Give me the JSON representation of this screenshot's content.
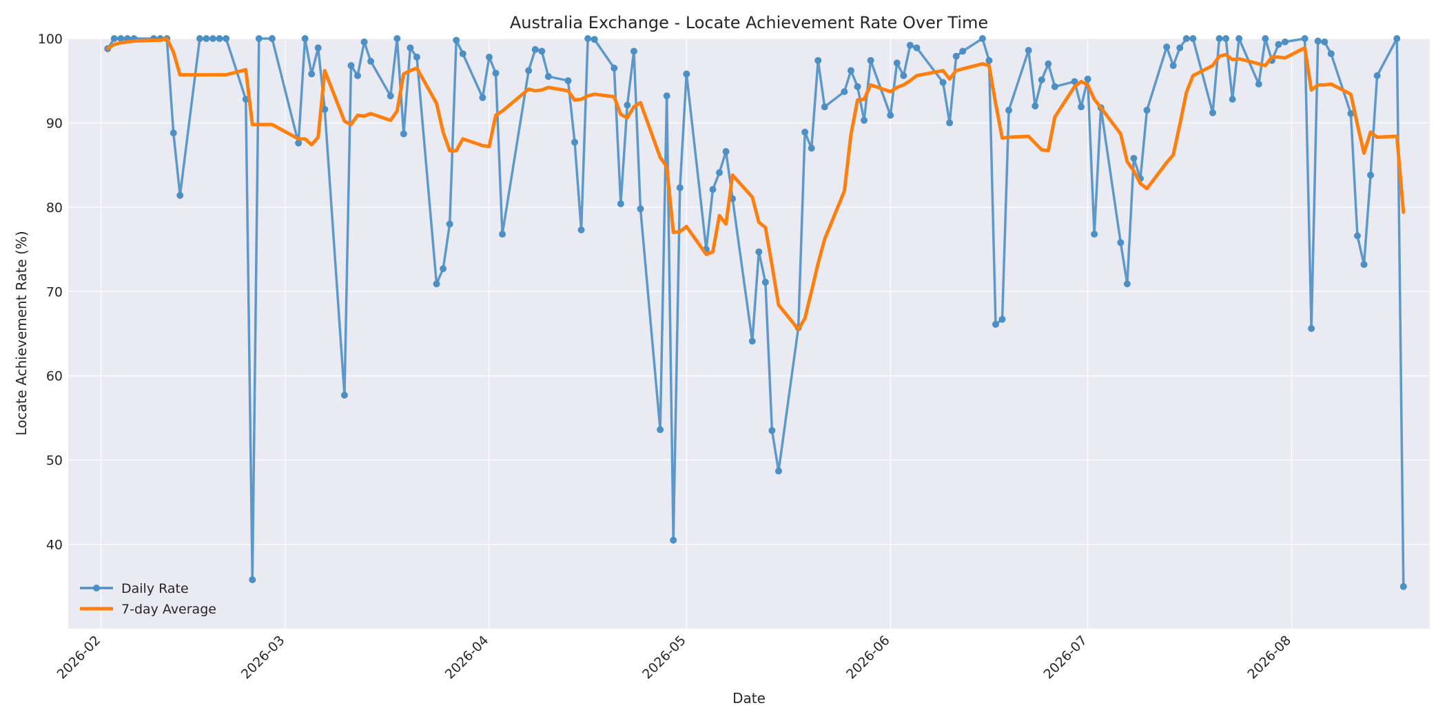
{
  "chart_data": {
    "type": "line",
    "title": "Australia Exchange - Locate Achievement Rate Over Time",
    "xlabel": "Date",
    "ylabel": "Locate Achievement Rate (%)",
    "ylim": [
      30,
      100
    ],
    "xlim": [
      "2026-01-27",
      "2026-08-22"
    ],
    "yticks": [
      40,
      50,
      60,
      70,
      80,
      90,
      100
    ],
    "xticks": [
      "2026-02",
      "2026-03",
      "2026-04",
      "2026-05",
      "2026-06",
      "2026-07",
      "2026-08"
    ],
    "grid": true,
    "legend_position": "bottom-left",
    "colors": {
      "background": "#eaeaf2",
      "daily": "#4c8fc4",
      "average": "#ff7f0e"
    },
    "series": [
      {
        "name": "Daily Rate",
        "marker": "circle",
        "points": [
          [
            "2026-02-02",
            98.8
          ],
          [
            "2026-02-03",
            100
          ],
          [
            "2026-02-04",
            100
          ],
          [
            "2026-02-05",
            100
          ],
          [
            "2026-02-06",
            100
          ],
          [
            "2026-02-09",
            100
          ],
          [
            "2026-02-10",
            100
          ],
          [
            "2026-02-11",
            100
          ],
          [
            "2026-02-12",
            88.8
          ],
          [
            "2026-02-13",
            81.4
          ],
          [
            "2026-02-16",
            100
          ],
          [
            "2026-02-17",
            100
          ],
          [
            "2026-02-18",
            100
          ],
          [
            "2026-02-19",
            100
          ],
          [
            "2026-02-20",
            100
          ],
          [
            "2026-02-23",
            92.8
          ],
          [
            "2026-02-24",
            35.8
          ],
          [
            "2026-02-25",
            100
          ],
          [
            "2026-02-27",
            100
          ],
          [
            "2026-03-03",
            87.6
          ],
          [
            "2026-03-04",
            100
          ],
          [
            "2026-03-05",
            95.8
          ],
          [
            "2026-03-06",
            98.9
          ],
          [
            "2026-03-07",
            91.6
          ],
          [
            "2026-03-10",
            57.7
          ],
          [
            "2026-03-11",
            96.8
          ],
          [
            "2026-03-12",
            95.6
          ],
          [
            "2026-03-13",
            99.6
          ],
          [
            "2026-03-14",
            97.3
          ],
          [
            "2026-03-17",
            93.2
          ],
          [
            "2026-03-18",
            100
          ],
          [
            "2026-03-19",
            88.7
          ],
          [
            "2026-03-20",
            98.9
          ],
          [
            "2026-03-21",
            97.8
          ],
          [
            "2026-03-24",
            70.9
          ],
          [
            "2026-03-25",
            72.7
          ],
          [
            "2026-03-26",
            78.0
          ],
          [
            "2026-03-27",
            99.8
          ],
          [
            "2026-03-28",
            98.2
          ],
          [
            "2026-03-31",
            93.0
          ],
          [
            "2026-04-01",
            97.8
          ],
          [
            "2026-04-02",
            95.9
          ],
          [
            "2026-04-03",
            76.8
          ],
          [
            "2026-04-07",
            96.2
          ],
          [
            "2026-04-08",
            98.7
          ],
          [
            "2026-04-09",
            98.5
          ],
          [
            "2026-04-10",
            95.5
          ],
          [
            "2026-04-13",
            95.0
          ],
          [
            "2026-04-14",
            87.7
          ],
          [
            "2026-04-15",
            77.3
          ],
          [
            "2026-04-16",
            100
          ],
          [
            "2026-04-17",
            99.9
          ],
          [
            "2026-04-20",
            96.5
          ],
          [
            "2026-04-21",
            80.4
          ],
          [
            "2026-04-22",
            92.1
          ],
          [
            "2026-04-23",
            98.5
          ],
          [
            "2026-04-24",
            79.8
          ],
          [
            "2026-04-27",
            53.6
          ],
          [
            "2026-04-28",
            93.2
          ],
          [
            "2026-04-29",
            40.5
          ],
          [
            "2026-04-30",
            82.3
          ],
          [
            "2026-05-01",
            95.8
          ],
          [
            "2026-05-04",
            75.0
          ],
          [
            "2026-05-05",
            82.1
          ],
          [
            "2026-05-06",
            84.1
          ],
          [
            "2026-05-07",
            86.6
          ],
          [
            "2026-05-08",
            81.0
          ],
          [
            "2026-05-11",
            64.1
          ],
          [
            "2026-05-12",
            74.7
          ],
          [
            "2026-05-13",
            71.1
          ],
          [
            "2026-05-14",
            53.5
          ],
          [
            "2026-05-15",
            48.7
          ],
          [
            "2026-05-18",
            65.7
          ],
          [
            "2026-05-19",
            88.9
          ],
          [
            "2026-05-20",
            87.0
          ],
          [
            "2026-05-21",
            97.4
          ],
          [
            "2026-05-22",
            91.9
          ],
          [
            "2026-05-25",
            93.7
          ],
          [
            "2026-05-26",
            96.2
          ],
          [
            "2026-05-27",
            94.3
          ],
          [
            "2026-05-28",
            90.3
          ],
          [
            "2026-05-29",
            97.4
          ],
          [
            "2026-06-01",
            90.9
          ],
          [
            "2026-06-02",
            97.1
          ],
          [
            "2026-06-03",
            95.6
          ],
          [
            "2026-06-04",
            99.2
          ],
          [
            "2026-06-05",
            98.9
          ],
          [
            "2026-06-09",
            94.8
          ],
          [
            "2026-06-10",
            90.0
          ],
          [
            "2026-06-11",
            97.9
          ],
          [
            "2026-06-12",
            98.5
          ],
          [
            "2026-06-15",
            100
          ],
          [
            "2026-06-16",
            97.4
          ],
          [
            "2026-06-17",
            66.1
          ],
          [
            "2026-06-18",
            66.7
          ],
          [
            "2026-06-19",
            91.5
          ],
          [
            "2026-06-22",
            98.6
          ],
          [
            "2026-06-23",
            92.0
          ],
          [
            "2026-06-24",
            95.1
          ],
          [
            "2026-06-25",
            97.0
          ],
          [
            "2026-06-26",
            94.3
          ],
          [
            "2026-06-29",
            94.9
          ],
          [
            "2026-06-30",
            91.9
          ],
          [
            "2026-07-01",
            95.2
          ],
          [
            "2026-07-02",
            76.8
          ],
          [
            "2026-07-03",
            91.8
          ],
          [
            "2026-07-06",
            75.8
          ],
          [
            "2026-07-07",
            70.9
          ],
          [
            "2026-07-08",
            85.8
          ],
          [
            "2026-07-09",
            83.4
          ],
          [
            "2026-07-10",
            91.5
          ],
          [
            "2026-07-13",
            99.0
          ],
          [
            "2026-07-14",
            96.8
          ],
          [
            "2026-07-15",
            98.9
          ],
          [
            "2026-07-16",
            100
          ],
          [
            "2026-07-17",
            100
          ],
          [
            "2026-07-20",
            91.2
          ],
          [
            "2026-07-21",
            100
          ],
          [
            "2026-07-22",
            100
          ],
          [
            "2026-07-23",
            92.8
          ],
          [
            "2026-07-24",
            100
          ],
          [
            "2026-07-27",
            94.6
          ],
          [
            "2026-07-28",
            100
          ],
          [
            "2026-07-29",
            97.4
          ],
          [
            "2026-07-30",
            99.3
          ],
          [
            "2026-07-31",
            99.6
          ],
          [
            "2026-08-03",
            100
          ],
          [
            "2026-08-04",
            65.6
          ],
          [
            "2026-08-05",
            99.7
          ],
          [
            "2026-08-06",
            99.6
          ],
          [
            "2026-08-07",
            98.2
          ],
          [
            "2026-08-10",
            91.1
          ],
          [
            "2026-08-11",
            76.6
          ],
          [
            "2026-08-12",
            73.2
          ],
          [
            "2026-08-13",
            83.8
          ],
          [
            "2026-08-14",
            95.6
          ],
          [
            "2026-08-17",
            100
          ],
          [
            "2026-08-18",
            35.0
          ]
        ]
      },
      {
        "name": "7-day Average",
        "marker": "none",
        "points": [
          [
            "2026-02-02",
            98.8
          ],
          [
            "2026-02-03",
            99.3
          ],
          [
            "2026-02-04",
            99.5
          ],
          [
            "2026-02-05",
            99.6
          ],
          [
            "2026-02-06",
            99.7
          ],
          [
            "2026-02-09",
            99.8
          ],
          [
            "2026-02-10",
            99.8
          ],
          [
            "2026-02-11",
            100
          ],
          [
            "2026-02-12",
            98.4
          ],
          [
            "2026-02-13",
            95.7
          ],
          [
            "2026-02-16",
            95.7
          ],
          [
            "2026-02-17",
            95.7
          ],
          [
            "2026-02-18",
            95.7
          ],
          [
            "2026-02-19",
            95.7
          ],
          [
            "2026-02-20",
            95.7
          ],
          [
            "2026-02-23",
            96.3
          ],
          [
            "2026-02-24",
            89.8
          ],
          [
            "2026-02-25",
            89.8
          ],
          [
            "2026-02-27",
            89.8
          ],
          [
            "2026-03-03",
            88.1
          ],
          [
            "2026-03-04",
            88.1
          ],
          [
            "2026-03-05",
            87.4
          ],
          [
            "2026-03-06",
            88.3
          ],
          [
            "2026-03-07",
            96.2
          ],
          [
            "2026-03-10",
            90.2
          ],
          [
            "2026-03-11",
            89.8
          ],
          [
            "2026-03-12",
            90.9
          ],
          [
            "2026-03-13",
            90.8
          ],
          [
            "2026-03-14",
            91.1
          ],
          [
            "2026-03-17",
            90.3
          ],
          [
            "2026-03-18",
            91.4
          ],
          [
            "2026-03-19",
            95.8
          ],
          [
            "2026-03-20",
            96.2
          ],
          [
            "2026-03-21",
            96.5
          ],
          [
            "2026-03-24",
            92.3
          ],
          [
            "2026-03-25",
            88.9
          ],
          [
            "2026-03-26",
            86.7
          ],
          [
            "2026-03-27",
            86.7
          ],
          [
            "2026-03-28",
            88.1
          ],
          [
            "2026-03-31",
            87.3
          ],
          [
            "2026-04-01",
            87.2
          ],
          [
            "2026-04-02",
            90.9
          ],
          [
            "2026-04-03",
            91.4
          ],
          [
            "2026-04-07",
            94.0
          ],
          [
            "2026-04-08",
            93.8
          ],
          [
            "2026-04-09",
            93.9
          ],
          [
            "2026-04-10",
            94.2
          ],
          [
            "2026-04-13",
            93.8
          ],
          [
            "2026-04-14",
            92.7
          ],
          [
            "2026-04-15",
            92.8
          ],
          [
            "2026-04-16",
            93.2
          ],
          [
            "2026-04-17",
            93.4
          ],
          [
            "2026-04-20",
            93.1
          ],
          [
            "2026-04-21",
            91.0
          ],
          [
            "2026-04-22",
            90.6
          ],
          [
            "2026-04-23",
            91.9
          ],
          [
            "2026-04-24",
            92.4
          ],
          [
            "2026-04-27",
            85.9
          ],
          [
            "2026-04-28",
            84.8
          ],
          [
            "2026-04-29",
            77.0
          ],
          [
            "2026-04-30",
            77.1
          ],
          [
            "2026-05-01",
            77.7
          ],
          [
            "2026-05-04",
            74.4
          ],
          [
            "2026-05-05",
            74.7
          ],
          [
            "2026-05-06",
            79.0
          ],
          [
            "2026-05-07",
            78.0
          ],
          [
            "2026-05-08",
            83.8
          ],
          [
            "2026-05-11",
            81.2
          ],
          [
            "2026-05-12",
            78.2
          ],
          [
            "2026-05-13",
            77.6
          ],
          [
            "2026-05-14",
            73.1
          ],
          [
            "2026-05-15",
            68.4
          ],
          [
            "2026-05-18",
            65.5
          ],
          [
            "2026-05-19",
            66.8
          ],
          [
            "2026-05-20",
            70.0
          ],
          [
            "2026-05-21",
            73.3
          ],
          [
            "2026-05-22",
            76.2
          ],
          [
            "2026-05-25",
            81.9
          ],
          [
            "2026-05-26",
            88.6
          ],
          [
            "2026-05-27",
            92.7
          ],
          [
            "2026-05-28",
            92.8
          ],
          [
            "2026-05-29",
            94.5
          ],
          [
            "2026-06-01",
            93.7
          ],
          [
            "2026-06-02",
            94.2
          ],
          [
            "2026-06-03",
            94.5
          ],
          [
            "2026-06-04",
            95.0
          ],
          [
            "2026-06-05",
            95.6
          ],
          [
            "2026-06-09",
            96.2
          ],
          [
            "2026-06-10",
            95.2
          ],
          [
            "2026-06-11",
            96.2
          ],
          [
            "2026-06-12",
            96.4
          ],
          [
            "2026-06-15",
            97.0
          ],
          [
            "2026-06-16",
            96.8
          ],
          [
            "2026-06-17",
            92.3
          ],
          [
            "2026-06-18",
            88.2
          ],
          [
            "2026-06-19",
            88.3
          ],
          [
            "2026-06-22",
            88.4
          ],
          [
            "2026-06-23",
            87.6
          ],
          [
            "2026-06-24",
            86.8
          ],
          [
            "2026-06-25",
            86.7
          ],
          [
            "2026-06-26",
            90.7
          ],
          [
            "2026-06-29",
            94.3
          ],
          [
            "2026-06-30",
            94.9
          ],
          [
            "2026-07-01",
            94.5
          ],
          [
            "2026-07-02",
            92.8
          ],
          [
            "2026-07-03",
            91.8
          ],
          [
            "2026-07-06",
            88.7
          ],
          [
            "2026-07-07",
            85.4
          ],
          [
            "2026-07-08",
            84.3
          ],
          [
            "2026-07-09",
            82.8
          ],
          [
            "2026-07-10",
            82.2
          ],
          [
            "2026-07-13",
            85.3
          ],
          [
            "2026-07-14",
            86.2
          ],
          [
            "2026-07-15",
            89.8
          ],
          [
            "2026-07-16",
            93.6
          ],
          [
            "2026-07-17",
            95.6
          ],
          [
            "2026-07-20",
            96.8
          ],
          [
            "2026-07-21",
            97.9
          ],
          [
            "2026-07-22",
            98.1
          ],
          [
            "2026-07-23",
            97.5
          ],
          [
            "2026-07-24",
            97.6
          ],
          [
            "2026-07-27",
            97.0
          ],
          [
            "2026-07-28",
            96.8
          ],
          [
            "2026-07-29",
            97.8
          ],
          [
            "2026-07-30",
            97.8
          ],
          [
            "2026-07-31",
            97.7
          ],
          [
            "2026-08-03",
            98.9
          ],
          [
            "2026-08-04",
            93.9
          ],
          [
            "2026-08-05",
            94.5
          ],
          [
            "2026-08-06",
            94.5
          ],
          [
            "2026-08-07",
            94.6
          ],
          [
            "2026-08-10",
            93.4
          ],
          [
            "2026-08-11",
            89.8
          ],
          [
            "2026-08-12",
            86.4
          ],
          [
            "2026-08-13",
            88.9
          ],
          [
            "2026-08-14",
            88.3
          ],
          [
            "2026-08-17",
            88.4
          ],
          [
            "2026-08-18",
            79.4
          ]
        ]
      }
    ]
  }
}
